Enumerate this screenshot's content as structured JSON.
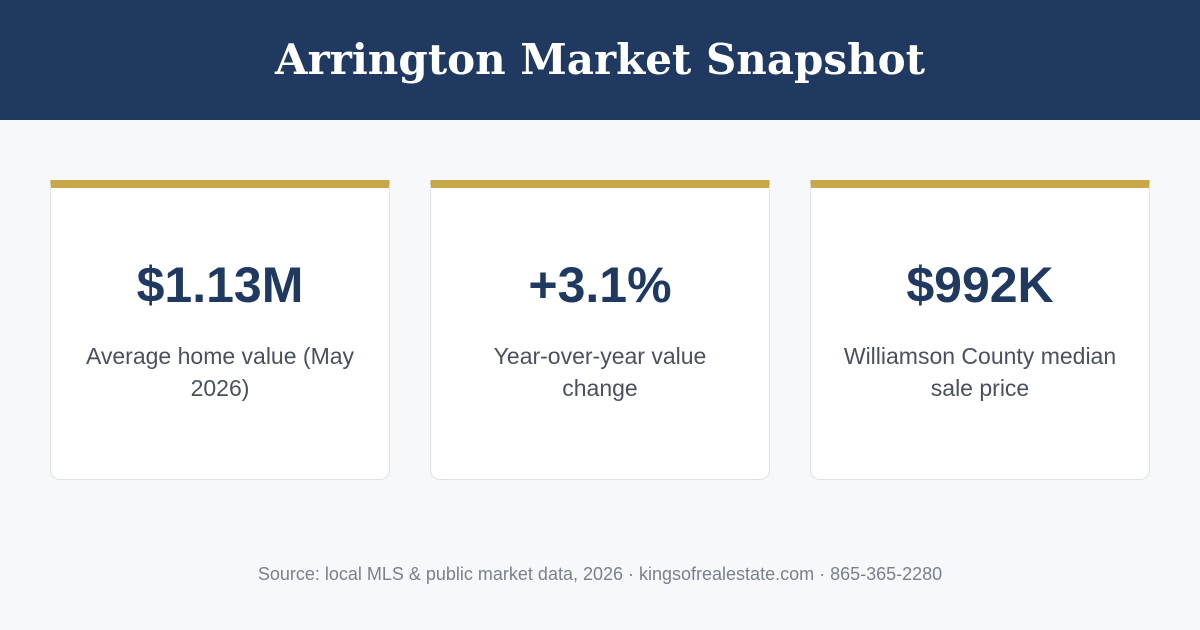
{
  "header": {
    "title": "Arrington Market Snapshot"
  },
  "stats": [
    {
      "value": "$1.13M",
      "label": "Average home value (May 2026)"
    },
    {
      "value": "+3.1%",
      "label": "Year-over-year value change"
    },
    {
      "value": "$992K",
      "label": "Williamson County median sale price"
    }
  ],
  "footer": {
    "source": "Source: local MLS & public market data, 2026 · kingsofrealestate.com · 865-365-2280"
  },
  "colors": {
    "header_background": "#1f3960",
    "card_accent": "#c8a74a",
    "value_text": "#1f3960",
    "page_background": "#f6f8fa"
  }
}
